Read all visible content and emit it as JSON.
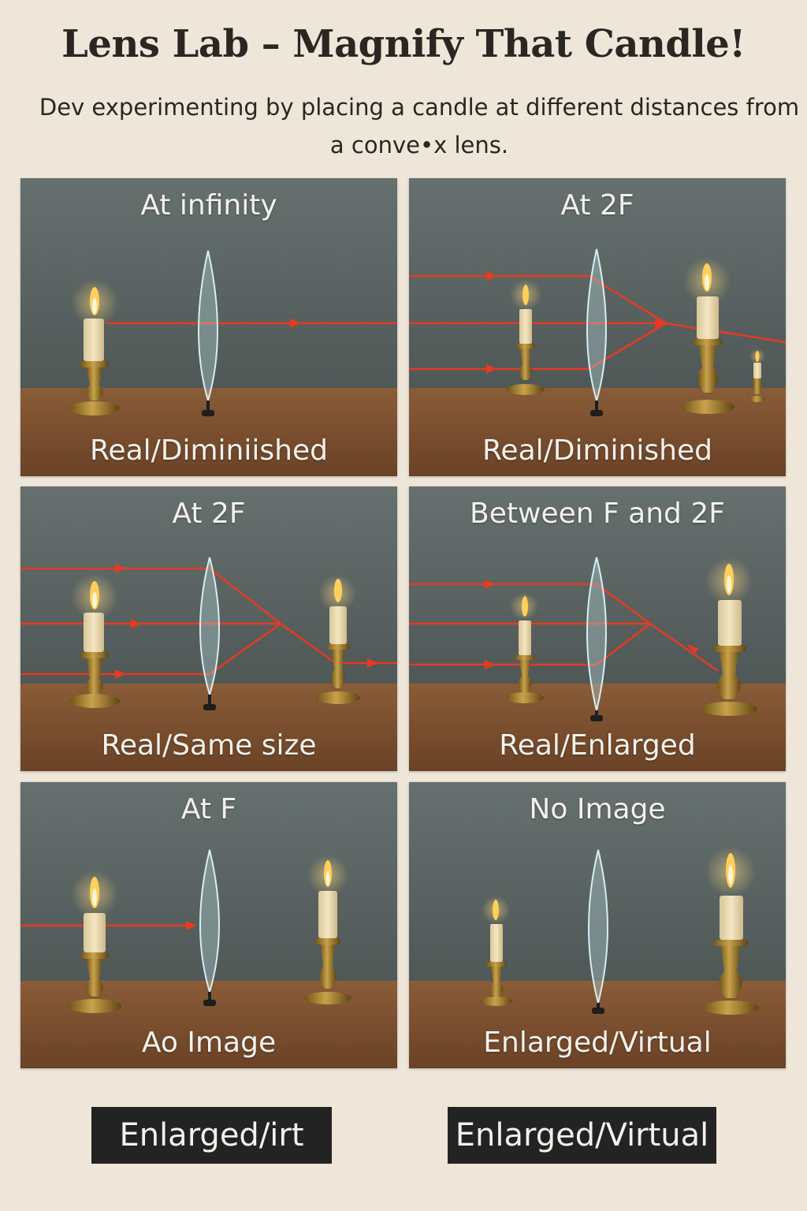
{
  "title": "Lens Lab – Magnify That Candle!",
  "subtitle_line1": "Dev experimenting by placing a candle at different distances from",
  "subtitle_line2": "a conve•x lens.",
  "colors": {
    "page_bg": "#efe6da",
    "wall": "#5c6664",
    "table": "#7a4f30",
    "ray": "#e63a22",
    "lens": "#bfe0e6",
    "button_bg": "#232323"
  },
  "icons": [
    "candle-icon",
    "convex-lens-icon",
    "brass-holder-icon",
    "light-ray-arrow-icon"
  ],
  "panels": [
    {
      "title": "At infinity",
      "caption": "Real/Diminiished"
    },
    {
      "title": "At 2F",
      "caption": "Real/Diminished"
    },
    {
      "title": "At 2F",
      "caption": "Real/Same size"
    },
    {
      "title": "Between F and 2F",
      "caption": "Real/Enlarged"
    },
    {
      "title": "At F",
      "caption": "Ao Image"
    },
    {
      "title": "No Image",
      "caption": "Enlarged/Virtual"
    }
  ],
  "buttons": {
    "left": "Enlarged/irt",
    "right": "Enlarged/Virtual"
  }
}
